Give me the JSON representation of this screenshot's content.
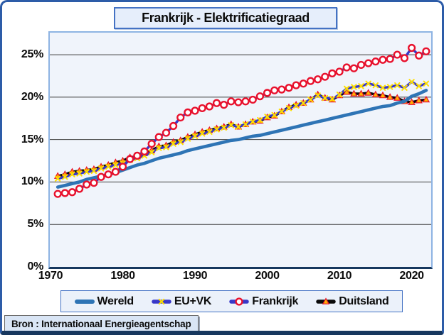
{
  "title": "Frankrijk - Elektrificatiegraad",
  "source": "Bron : Internationaal Energieagentschap",
  "colors": {
    "frame_border": "#2D5CA8",
    "frame_bottom": "#17375E",
    "title_border": "#4472C4",
    "title_fill": "#E6EEFB",
    "plot_fill": "#F0F4FB",
    "plot_border": "#8EB4E3",
    "axis_line": "#17375E",
    "gridline": "#3F3F3F",
    "wereld_blue": "#2E74B5",
    "series_line_blue": "#3838C8",
    "frankrijk_red": "#E8112D",
    "duitsland_black": "#0A0A0A",
    "marker_yellow": "#FFE000",
    "triangle_orange": "#FFB400"
  },
  "y_axis": {
    "tick_labels": [
      "0%",
      "5%",
      "10%",
      "15%",
      "20%",
      "25%"
    ],
    "tick_values": [
      0,
      5,
      10,
      15,
      20,
      25
    ]
  },
  "x_axis": {
    "tick_labels": [
      "1970",
      "1980",
      "1990",
      "2000",
      "2010",
      "2020"
    ],
    "tick_values": [
      1970,
      1980,
      1990,
      2000,
      2010,
      2020
    ]
  },
  "chart_data": {
    "type": "line",
    "title": "Frankrijk - Elektrificatiegraad",
    "xlabel": "",
    "ylabel": "",
    "unit": "%",
    "xlim": [
      1969.9,
      2022.7
    ],
    "ylim": [
      0,
      27.6
    ],
    "grid_values": [
      5,
      10,
      15,
      20,
      25
    ],
    "legend_position": "bottom",
    "x": [
      1971,
      1972,
      1973,
      1974,
      1975,
      1976,
      1977,
      1978,
      1979,
      1980,
      1981,
      1982,
      1983,
      1984,
      1985,
      1986,
      1987,
      1988,
      1989,
      1990,
      1991,
      1992,
      1993,
      1994,
      1995,
      1996,
      1997,
      1998,
      1999,
      2000,
      2001,
      2002,
      2003,
      2004,
      2005,
      2006,
      2007,
      2008,
      2009,
      2010,
      2011,
      2012,
      2013,
      2014,
      2015,
      2016,
      2017,
      2018,
      2019,
      2020,
      2021,
      2022
    ],
    "series": [
      {
        "name": "Wereld",
        "line_color": "#2E74B5",
        "line_width": 4.6,
        "marker": "none",
        "values": [
          9.4,
          9.6,
          9.8,
          10.0,
          10.3,
          10.5,
          10.7,
          10.9,
          11.1,
          11.4,
          11.7,
          12.0,
          12.2,
          12.5,
          12.8,
          13.0,
          13.2,
          13.4,
          13.7,
          13.9,
          14.1,
          14.3,
          14.5,
          14.7,
          14.9,
          15.0,
          15.2,
          15.4,
          15.5,
          15.7,
          15.9,
          16.1,
          16.3,
          16.5,
          16.7,
          16.9,
          17.1,
          17.3,
          17.5,
          17.7,
          17.9,
          18.1,
          18.3,
          18.5,
          18.7,
          18.9,
          19.0,
          19.3,
          19.5,
          20.1,
          20.4,
          20.8
        ]
      },
      {
        "name": "EU+VK",
        "line_color": "#3838C8",
        "line_width": 3.4,
        "marker": "x",
        "marker_color": "#FFE000",
        "values": [
          10.4,
          10.6,
          10.9,
          11.0,
          11.2,
          11.3,
          11.6,
          11.8,
          12.0,
          12.2,
          12.6,
          12.8,
          13.1,
          13.5,
          14.0,
          14.1,
          14.5,
          14.7,
          15.1,
          15.4,
          15.7,
          15.9,
          16.2,
          16.4,
          16.7,
          16.5,
          16.8,
          17.1,
          17.3,
          17.7,
          17.9,
          18.3,
          18.7,
          19.0,
          19.3,
          19.7,
          20.2,
          19.9,
          19.8,
          20.3,
          21.0,
          21.2,
          21.3,
          21.6,
          21.4,
          21.1,
          21.2,
          21.4,
          21.1,
          21.8,
          21.3,
          21.6
        ]
      },
      {
        "name": "Frankrijk",
        "line_color": "#3838C8",
        "line_width": 3.4,
        "marker": "circle",
        "marker_color": "#E8112D",
        "marker_fill": "#FFFFFF",
        "values": [
          8.6,
          8.7,
          8.8,
          9.2,
          9.7,
          9.9,
          10.6,
          10.9,
          11.2,
          11.8,
          12.7,
          13.1,
          13.6,
          14.5,
          15.3,
          15.8,
          16.6,
          17.6,
          18.2,
          18.4,
          18.7,
          18.9,
          19.3,
          19.1,
          19.5,
          19.4,
          19.5,
          19.7,
          20.1,
          20.5,
          20.8,
          20.9,
          21.1,
          21.4,
          21.6,
          21.9,
          22.1,
          22.4,
          22.8,
          23.0,
          23.5,
          23.4,
          23.8,
          24.0,
          24.2,
          24.4,
          24.5,
          25.0,
          24.6,
          25.8,
          24.9,
          25.4
        ]
      },
      {
        "name": "Duitsland",
        "line_color": "#0A0A0A",
        "line_width": 3.6,
        "marker": "triangle",
        "marker_color": "#FFB400",
        "marker_stroke": "#E8112D",
        "values": [
          10.7,
          10.9,
          11.2,
          11.3,
          11.4,
          11.5,
          11.8,
          12.0,
          12.3,
          12.5,
          12.9,
          13.0,
          13.4,
          13.7,
          14.2,
          14.3,
          14.7,
          14.9,
          15.3,
          15.6,
          15.9,
          16.1,
          16.3,
          16.5,
          16.8,
          16.5,
          16.8,
          17.1,
          17.2,
          17.6,
          17.8,
          18.3,
          18.8,
          19.1,
          19.3,
          19.7,
          20.3,
          19.9,
          19.7,
          20.2,
          20.6,
          20.4,
          20.4,
          20.5,
          20.3,
          20.2,
          20.0,
          19.9,
          19.5,
          19.4,
          19.6,
          19.7
        ]
      }
    ],
    "legend_order": [
      "Wereld",
      "EU+VK",
      "Frankrijk",
      "Duitsland"
    ],
    "draw_order": [
      "Duitsland",
      "Wereld",
      "EU+VK",
      "Frankrijk"
    ]
  }
}
